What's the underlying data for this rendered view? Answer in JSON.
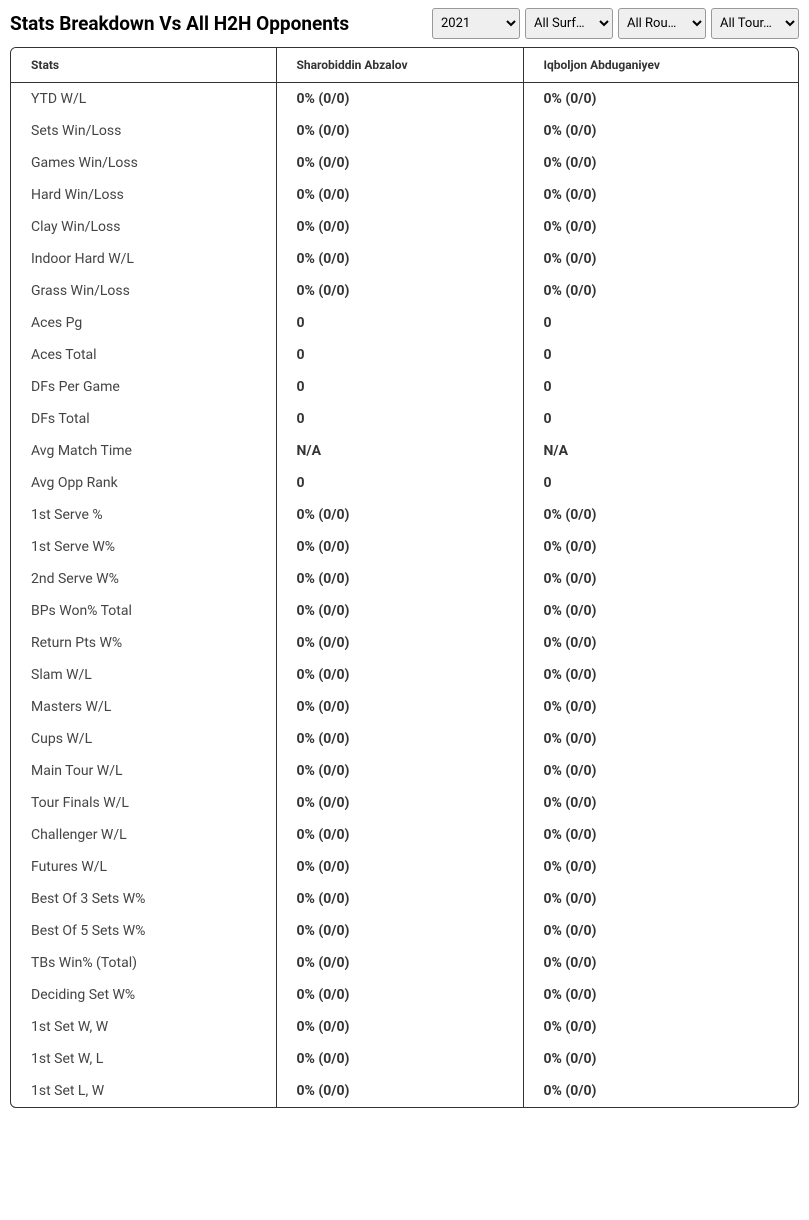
{
  "header": {
    "title": "Stats Breakdown Vs All H2H Opponents"
  },
  "filters": {
    "year": "2021",
    "surface": "All Surf…",
    "rounds": "All Rou…",
    "tournaments": "All Tour…"
  },
  "table": {
    "columns": [
      "Stats",
      "Sharobiddin Abzalov",
      "Iqboljon Abduganiyev"
    ],
    "rows": [
      [
        "YTD W/L",
        "0% (0/0)",
        "0% (0/0)"
      ],
      [
        "Sets Win/Loss",
        "0% (0/0)",
        "0% (0/0)"
      ],
      [
        "Games Win/Loss",
        "0% (0/0)",
        "0% (0/0)"
      ],
      [
        "Hard Win/Loss",
        "0% (0/0)",
        "0% (0/0)"
      ],
      [
        "Clay Win/Loss",
        "0% (0/0)",
        "0% (0/0)"
      ],
      [
        "Indoor Hard W/L",
        "0% (0/0)",
        "0% (0/0)"
      ],
      [
        "Grass Win/Loss",
        "0% (0/0)",
        "0% (0/0)"
      ],
      [
        "Aces Pg",
        "0",
        "0"
      ],
      [
        "Aces Total",
        "0",
        "0"
      ],
      [
        "DFs Per Game",
        "0",
        "0"
      ],
      [
        "DFs Total",
        "0",
        "0"
      ],
      [
        "Avg Match Time",
        "N/A",
        "N/A"
      ],
      [
        "Avg Opp Rank",
        "0",
        "0"
      ],
      [
        "1st Serve %",
        "0% (0/0)",
        "0% (0/0)"
      ],
      [
        "1st Serve W%",
        "0% (0/0)",
        "0% (0/0)"
      ],
      [
        "2nd Serve W%",
        "0% (0/0)",
        "0% (0/0)"
      ],
      [
        "BPs Won% Total",
        "0% (0/0)",
        "0% (0/0)"
      ],
      [
        "Return Pts W%",
        "0% (0/0)",
        "0% (0/0)"
      ],
      [
        "Slam W/L",
        "0% (0/0)",
        "0% (0/0)"
      ],
      [
        "Masters W/L",
        "0% (0/0)",
        "0% (0/0)"
      ],
      [
        "Cups W/L",
        "0% (0/0)",
        "0% (0/0)"
      ],
      [
        "Main Tour W/L",
        "0% (0/0)",
        "0% (0/0)"
      ],
      [
        "Tour Finals W/L",
        "0% (0/0)",
        "0% (0/0)"
      ],
      [
        "Challenger W/L",
        "0% (0/0)",
        "0% (0/0)"
      ],
      [
        "Futures W/L",
        "0% (0/0)",
        "0% (0/0)"
      ],
      [
        "Best Of 3 Sets W%",
        "0% (0/0)",
        "0% (0/0)"
      ],
      [
        "Best Of 5 Sets W%",
        "0% (0/0)",
        "0% (0/0)"
      ],
      [
        "TBs Win% (Total)",
        "0% (0/0)",
        "0% (0/0)"
      ],
      [
        "Deciding Set W%",
        "0% (0/0)",
        "0% (0/0)"
      ],
      [
        "1st Set W, W",
        "0% (0/0)",
        "0% (0/0)"
      ],
      [
        "1st Set W, L",
        "0% (0/0)",
        "0% (0/0)"
      ],
      [
        "1st Set L, W",
        "0% (0/0)",
        "0% (0/0)"
      ]
    ]
  }
}
